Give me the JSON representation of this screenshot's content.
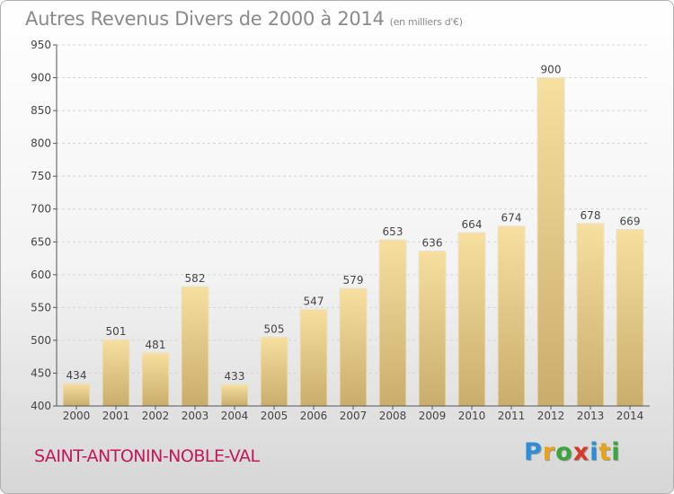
{
  "chart_data": {
    "type": "bar",
    "title": "Autres Revenus Divers de 2000 à 2014",
    "subtitle": "(en milliers d'€)",
    "categories": [
      "2000",
      "2001",
      "2002",
      "2003",
      "2004",
      "2005",
      "2006",
      "2007",
      "2008",
      "2009",
      "2010",
      "2011",
      "2012",
      "2013",
      "2014"
    ],
    "values": [
      434,
      501,
      481,
      582,
      433,
      505,
      547,
      579,
      653,
      636,
      664,
      674,
      900,
      678,
      669
    ],
    "ylim": [
      400,
      950
    ],
    "yticks": [
      400,
      450,
      500,
      550,
      600,
      650,
      700,
      750,
      800,
      850,
      900,
      950
    ],
    "grid": true,
    "bar_color": "#e6c77a",
    "show_value_labels": true
  },
  "footer": {
    "location": "SAINT-ANTONIN-NOBLE-VAL",
    "location_color": "#c2185b",
    "logo": {
      "letters": [
        "P",
        "r",
        "o",
        "x",
        "i",
        "t",
        "i"
      ],
      "colors": [
        "#2a8fd6",
        "#e8a317",
        "#3aa63a",
        "#d63a2a",
        "#2a8fd6",
        "#e8a317",
        "#3aa63a"
      ]
    }
  }
}
